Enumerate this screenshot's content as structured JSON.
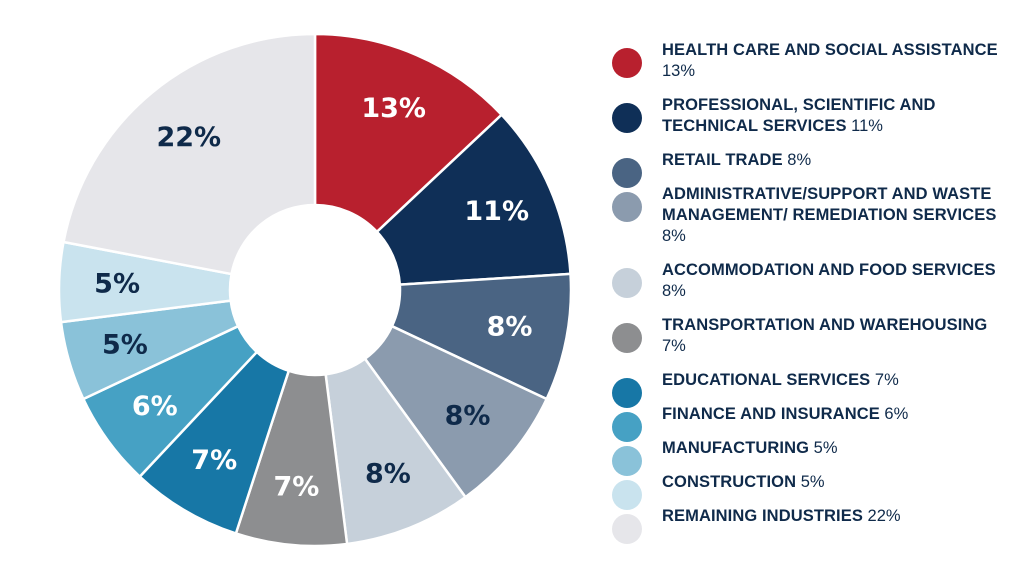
{
  "chart_data": {
    "type": "pie",
    "donut": true,
    "legend_position": "right",
    "slices": [
      {
        "name": "HEALTH CARE AND SOCIAL ASSISTANCE",
        "legend_value": "13%",
        "label": "13%",
        "value": 13,
        "color": "#b8202e",
        "label_color": "#ffffff"
      },
      {
        "name": "PROFESSIONAL, SCIENTIFIC AND TECHNICAL SERVICES",
        "legend_value": "11%",
        "label": "11%",
        "value": 11,
        "color": "#0f2f57",
        "label_color": "#ffffff"
      },
      {
        "name": "RETAIL TRADE",
        "legend_value": "8%",
        "label": "8%",
        "value": 8,
        "color": "#4a6483",
        "label_color": "#ffffff"
      },
      {
        "name": "ADMINISTRATIVE/SUPPORT AND WASTE MANAGEMENT/ REMEDIATION SERVICES",
        "legend_value": "8%",
        "label": "8%",
        "value": 8,
        "color": "#8b9bae",
        "label_color": "#0f2a4a"
      },
      {
        "name": "ACCOMMODATION AND FOOD SERVICES",
        "legend_value": "8%",
        "label": "8%",
        "value": 8,
        "color": "#c6d0da",
        "label_color": "#0f2a4a"
      },
      {
        "name": "TRANSPORTATION AND WAREHOUSING",
        "legend_value": "7%",
        "label": "7%",
        "value": 7,
        "color": "#8d8e90",
        "label_color": "#ffffff"
      },
      {
        "name": "EDUCATIONAL SERVICES",
        "legend_value": "7%",
        "label": "7%",
        "value": 7,
        "color": "#1777a6",
        "label_color": "#ffffff"
      },
      {
        "name": "FINANCE AND INSURANCE",
        "legend_value": "6%",
        "label": "6%",
        "value": 6,
        "color": "#46a1c4",
        "label_color": "#ffffff"
      },
      {
        "name": "MANUFACTURING",
        "legend_value": "5%",
        "label": "5%",
        "value": 5,
        "color": "#8ac2d9",
        "label_color": "#0f2a4a"
      },
      {
        "name": "CONSTRUCTION",
        "legend_value": "5%",
        "label": "5%",
        "value": 5,
        "color": "#c9e3ee",
        "label_color": "#0f2a4a"
      },
      {
        "name": "REMAINING INDUSTRIES",
        "legend_value": "22%",
        "label": "22%",
        "value": 22,
        "color": "#e6e6ea",
        "label_color": "#0f2a4a"
      }
    ]
  }
}
